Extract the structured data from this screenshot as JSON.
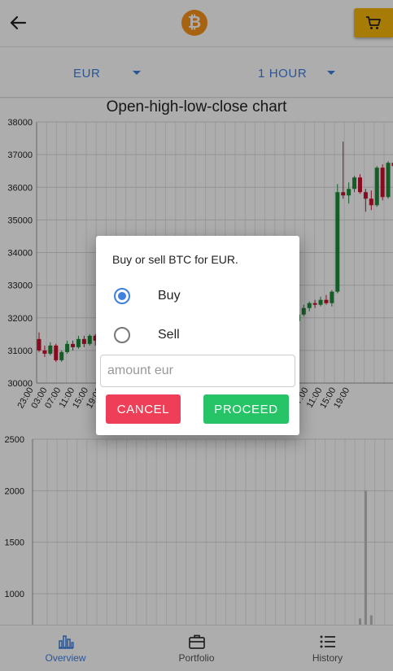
{
  "header": {
    "back_icon": "arrow-left-icon",
    "logo_icon": "bitcoin-logo-icon",
    "logo_symbol": "₿",
    "cart_icon": "shopping-cart-icon",
    "cart_color": "#f5b50a"
  },
  "selectors": {
    "currency": "EUR",
    "interval": "1 HOUR"
  },
  "ohlc_chart": {
    "title": "Open-high-low-close chart"
  },
  "chart_data": [
    {
      "type": "candlestick",
      "title": "Open-high-low-close chart",
      "ylim": [
        30000,
        38000
      ],
      "y_ticks": [
        30000,
        31000,
        32000,
        33000,
        34000,
        35000,
        36000,
        37000,
        38000
      ],
      "x_tick_labels": [
        "23:00",
        "03:00",
        "07:00",
        "11:00",
        "15:00",
        "19:00",
        "23:00",
        "03:00",
        "07:00",
        "11:00",
        "15:00",
        "19:00",
        "23:00",
        "03:00",
        "07:00",
        "11:00",
        "15:00",
        "19:00",
        "23:00",
        "03:00",
        "07:00",
        "11:00",
        "15:00",
        "19:00"
      ],
      "grid": true,
      "up_color": "#1e8a3a",
      "down_color": "#c8102e",
      "candles": [
        {
          "o": 31350,
          "h": 31550,
          "l": 30950,
          "c": 31000
        },
        {
          "o": 31000,
          "h": 31150,
          "l": 30800,
          "c": 30900
        },
        {
          "o": 30900,
          "h": 31250,
          "l": 30850,
          "c": 31150
        },
        {
          "o": 31150,
          "h": 31200,
          "l": 30650,
          "c": 30700
        },
        {
          "o": 30700,
          "h": 31000,
          "l": 30650,
          "c": 30950
        },
        {
          "o": 30950,
          "h": 31300,
          "l": 30900,
          "c": 31200
        },
        {
          "o": 31200,
          "h": 31300,
          "l": 31000,
          "c": 31100
        },
        {
          "o": 31100,
          "h": 31450,
          "l": 31050,
          "c": 31350
        },
        {
          "o": 31350,
          "h": 31450,
          "l": 31100,
          "c": 31200
        },
        {
          "o": 31200,
          "h": 31500,
          "l": 31150,
          "c": 31450
        },
        {
          "o": 31450,
          "h": 31500,
          "l": 31150,
          "c": 31300
        },
        {
          "o": 31300,
          "h": 31800,
          "l": 31250,
          "c": 31700
        },
        {
          "o": 31700,
          "h": 31900,
          "l": 31500,
          "c": 31550
        },
        {
          "o": 31550,
          "h": 32100,
          "l": 31500,
          "c": 31950
        },
        {
          "o": 31950,
          "h": 32100,
          "l": 31700,
          "c": 31800
        },
        {
          "o": 31800,
          "h": 32250,
          "l": 31750,
          "c": 32000
        },
        {
          "o": 32000,
          "h": 32100,
          "l": 31700,
          "c": 31850
        },
        {
          "o": 31850,
          "h": 32050,
          "l": 31700,
          "c": 31900
        },
        {
          "o": 31900,
          "h": 32100,
          "l": 31800,
          "c": 32000
        },
        {
          "o": 32000,
          "h": 32250,
          "l": 31850,
          "c": 31950
        },
        {
          "o": 31950,
          "h": 32400,
          "l": 31900,
          "c": 32200
        },
        {
          "o": 32200,
          "h": 32350,
          "l": 31950,
          "c": 32050
        },
        {
          "o": 32050,
          "h": 32300,
          "l": 31900,
          "c": 32150
        },
        {
          "o": 32150,
          "h": 32200,
          "l": 31850,
          "c": 31900
        },
        {
          "o": 31900,
          "h": 32100,
          "l": 31750,
          "c": 31950
        },
        {
          "o": 31950,
          "h": 32350,
          "l": 31900,
          "c": 32300
        },
        {
          "o": 32300,
          "h": 32450,
          "l": 32100,
          "c": 32200
        },
        {
          "o": 32200,
          "h": 32300,
          "l": 31950,
          "c": 32050
        },
        {
          "o": 32050,
          "h": 32200,
          "l": 31800,
          "c": 31900
        },
        {
          "o": 31900,
          "h": 32000,
          "l": 31600,
          "c": 31700
        },
        {
          "o": 31700,
          "h": 32100,
          "l": 31650,
          "c": 32050
        },
        {
          "o": 32050,
          "h": 32200,
          "l": 31900,
          "c": 31950
        },
        {
          "o": 31950,
          "h": 32100,
          "l": 31850,
          "c": 32000
        },
        {
          "o": 32000,
          "h": 32100,
          "l": 31800,
          "c": 31850
        },
        {
          "o": 31850,
          "h": 32050,
          "l": 31750,
          "c": 31950
        },
        {
          "o": 31950,
          "h": 32000,
          "l": 31650,
          "c": 31750
        },
        {
          "o": 31750,
          "h": 32050,
          "l": 31700,
          "c": 31950
        },
        {
          "o": 31950,
          "h": 32100,
          "l": 31800,
          "c": 31900
        },
        {
          "o": 31900,
          "h": 32050,
          "l": 31800,
          "c": 32000
        },
        {
          "o": 32000,
          "h": 32100,
          "l": 31850,
          "c": 31900
        },
        {
          "o": 31900,
          "h": 32050,
          "l": 31700,
          "c": 31800
        },
        {
          "o": 31800,
          "h": 32250,
          "l": 31700,
          "c": 32150
        },
        {
          "o": 32150,
          "h": 32250,
          "l": 31900,
          "c": 31950
        },
        {
          "o": 31950,
          "h": 32050,
          "l": 31700,
          "c": 31800
        },
        {
          "o": 31800,
          "h": 31950,
          "l": 31550,
          "c": 31650
        },
        {
          "o": 31650,
          "h": 32000,
          "l": 31600,
          "c": 31900
        },
        {
          "o": 31900,
          "h": 32200,
          "l": 31850,
          "c": 32100
        },
        {
          "o": 32100,
          "h": 32400,
          "l": 32050,
          "c": 32300
        },
        {
          "o": 32300,
          "h": 32500,
          "l": 32200,
          "c": 32450
        },
        {
          "o": 32450,
          "h": 32550,
          "l": 32300,
          "c": 32400
        },
        {
          "o": 32400,
          "h": 32650,
          "l": 32350,
          "c": 32550
        },
        {
          "o": 32550,
          "h": 32700,
          "l": 32400,
          "c": 32450
        },
        {
          "o": 32450,
          "h": 32850,
          "l": 32350,
          "c": 32800
        },
        {
          "o": 32800,
          "h": 36100,
          "l": 32750,
          "c": 35850
        },
        {
          "o": 35850,
          "h": 37400,
          "l": 35650,
          "c": 35750
        },
        {
          "o": 35750,
          "h": 36150,
          "l": 35500,
          "c": 35950
        },
        {
          "o": 35950,
          "h": 36350,
          "l": 35850,
          "c": 36300
        },
        {
          "o": 36300,
          "h": 36400,
          "l": 35800,
          "c": 35850
        },
        {
          "o": 35850,
          "h": 35950,
          "l": 35250,
          "c": 35650
        },
        {
          "o": 35650,
          "h": 35900,
          "l": 35300,
          "c": 35450
        },
        {
          "o": 35450,
          "h": 36650,
          "l": 35400,
          "c": 36600
        },
        {
          "o": 36600,
          "h": 36700,
          "l": 35600,
          "c": 35700
        },
        {
          "o": 35700,
          "h": 36800,
          "l": 35650,
          "c": 36750
        },
        {
          "o": 36750,
          "h": 37000,
          "l": 36450,
          "c": 36650
        }
      ]
    },
    {
      "type": "bar",
      "title": "",
      "ylim": [
        700,
        2500
      ],
      "y_ticks": [
        1000,
        1500,
        2000,
        2500
      ],
      "grid": true,
      "color": "#bdbdbd",
      "bars": [
        {
          "index": 57,
          "value": 760
        },
        {
          "index": 58,
          "value": 2000
        },
        {
          "index": 59,
          "value": 790
        }
      ]
    }
  ],
  "dialog": {
    "message": "Buy or sell BTC for EUR.",
    "options": [
      {
        "label": "Buy",
        "selected": true
      },
      {
        "label": "Sell",
        "selected": false
      }
    ],
    "amount_value": "",
    "amount_placeholder": "amount eur",
    "cancel_label": "CANCEL",
    "proceed_label": "PROCEED",
    "cancel_color": "#ef3e57",
    "proceed_color": "#27c467"
  },
  "bottom_nav": {
    "items": [
      {
        "label": "Overview",
        "icon": "bar-chart-icon",
        "active": true
      },
      {
        "label": "Portfolio",
        "icon": "briefcase-icon",
        "active": false
      },
      {
        "label": "History",
        "icon": "list-icon",
        "active": false
      }
    ]
  }
}
